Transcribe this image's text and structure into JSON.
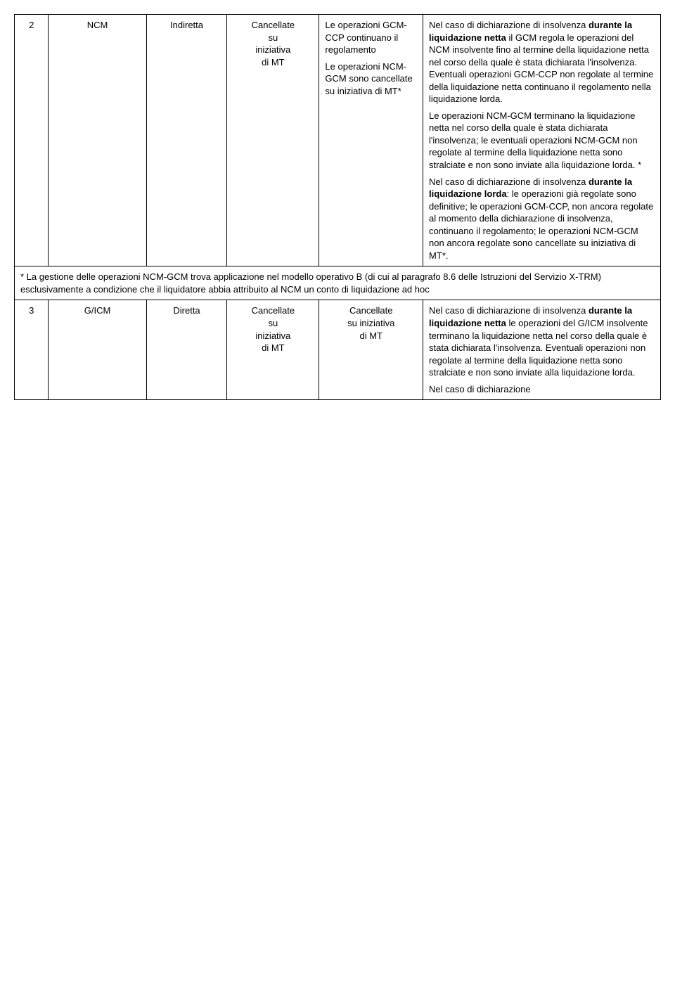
{
  "row1": {
    "num": "2",
    "name": "NCM",
    "type": "Indiretta",
    "action_line1": "Cancellate",
    "action_line2": "su",
    "action_line3": "iniziativa",
    "action_line4": "di MT",
    "ops_p1": "Le operazioni GCM-CCP continuano il regolamento",
    "ops_p2": "Le operazioni NCM-GCM sono cancellate su iniziativa di MT*",
    "desc_p1_pre": "Nel caso di dichiarazione di insolvenza ",
    "desc_p1_bold": "durante la liquidazione netta",
    "desc_p1_post": " il GCM regola le operazioni del NCM insolvente fino al termine della liquidazione netta nel corso della quale è stata dichiarata l'insolvenza. Eventuali operazioni GCM-CCP non regolate al termine della liquidazione netta continuano il regolamento nella liquidazione lorda.",
    "desc_p2": "Le operazioni NCM-GCM terminano la liquidazione netta nel corso della quale è stata dichiarata l'insolvenza; le eventuali operazioni NCM-GCM non regolate al termine della liquidazione netta sono stralciate e non sono inviate alla liquidazione lorda. *",
    "desc_p3_pre": "Nel caso di dichiarazione di insolvenza ",
    "desc_p3_bold": "durante la liquidazione lorda",
    "desc_p3_post": ": le operazioni già regolate sono definitive; le operazioni GCM-CCP, non ancora regolate al momento della dichiarazione di insolvenza, continuano il regolamento; le operazioni NCM-GCM non ancora regolate sono cancellate su iniziativa di MT*."
  },
  "footnote": "* La gestione delle operazioni NCM-GCM trova applicazione nel modello operativo B (di cui al paragrafo 8.6 delle Istruzioni del Servizio X-TRM) esclusivamente a condizione che il liquidatore abbia attribuito al NCM un conto di liquidazione ad hoc",
  "row2": {
    "num": "3",
    "name": "G/ICM",
    "type": "Diretta",
    "action_line1": "Cancellate",
    "action_line2": "su",
    "action_line3": "iniziativa",
    "action_line4": "di MT",
    "ops_line1": "Cancellate",
    "ops_line2": "su iniziativa",
    "ops_line3": "di MT",
    "desc_p1_pre": "Nel caso di dichiarazione di insolvenza ",
    "desc_p1_bold": "durante la liquidazione netta",
    "desc_p1_post": " le operazioni del G/ICM insolvente terminano la liquidazione netta nel corso della quale è stata dichiarata l'insolvenza. Eventuali operazioni non regolate al termine della liquidazione netta sono stralciate e non sono inviate alla liquidazione lorda.",
    "desc_p2": "Nel caso di dichiarazione"
  }
}
